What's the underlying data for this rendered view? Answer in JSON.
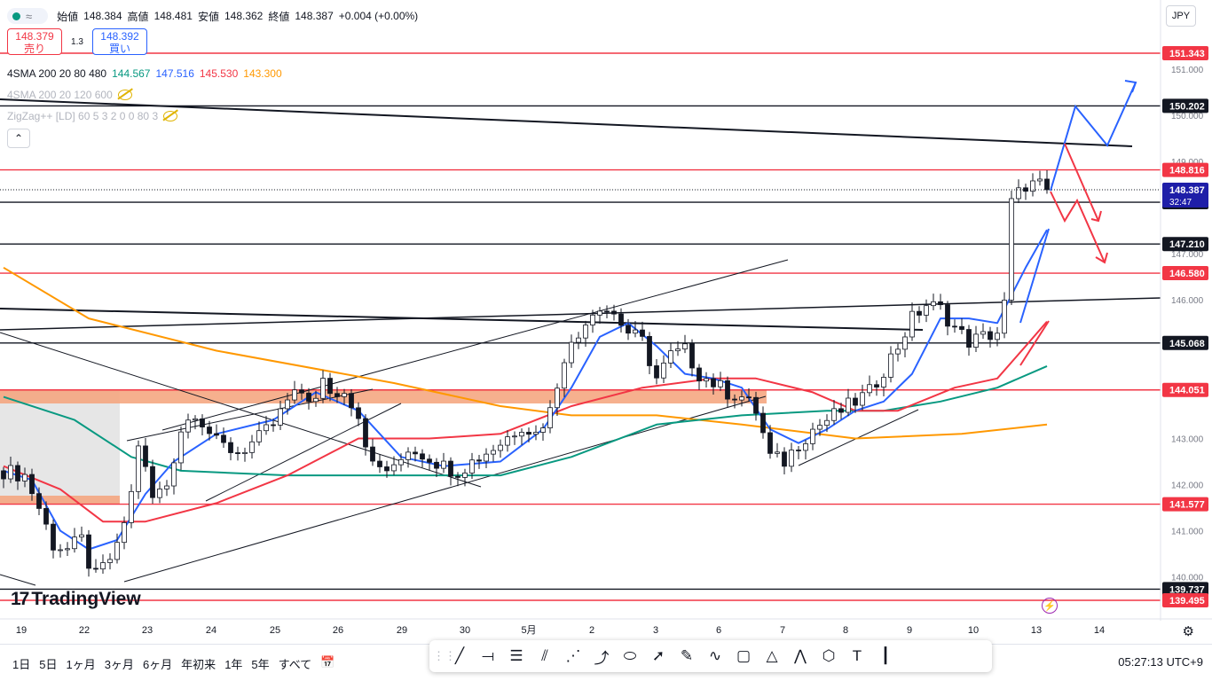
{
  "header": {
    "ohlc": {
      "open_label": "始値",
      "open": "148.384",
      "high_label": "高値",
      "high": "148.481",
      "low_label": "安値",
      "low": "148.362",
      "close_label": "終値",
      "close": "148.387",
      "change": "+0.004 (+0.00%)"
    },
    "sell": {
      "price": "148.379",
      "label": "売り"
    },
    "buy": {
      "price": "148.392",
      "label": "買い"
    },
    "spread": "1.3",
    "currency": "JPY",
    "icons": [
      "status-dot-icon",
      "wave-icon",
      "eye-off-icon",
      "chevron-up-icon"
    ]
  },
  "indicators": [
    {
      "label": "4SMA 200 20 80 480",
      "values": [
        "144.567",
        "147.516",
        "145.530",
        "143.300"
      ],
      "colors": [
        "#089981",
        "#2962ff",
        "#f23645",
        "#ff9800"
      ]
    },
    {
      "label": "4SMA 200 20 120 600",
      "hidden": true
    },
    {
      "label": "ZigZag++ [LD] 60 5 3 2 0 0 80 3",
      "hidden": true
    }
  ],
  "logo": "TradingView",
  "bottom": {
    "ranges": [
      "1日",
      "5日",
      "1ヶ月",
      "3ヶ月",
      "6ヶ月",
      "年初来",
      "1年",
      "5年",
      "すべて"
    ],
    "time": "05:27:13 UTC+9",
    "tools": [
      "trend-line-icon",
      "horizontal-ray-icon",
      "parallel-lines-icon",
      "fib-icon",
      "pitchfork-icon",
      "path-icon",
      "ellipse-icon",
      "arrow-icon",
      "brush-icon",
      "curve-icon",
      "rectangle-icon",
      "triangle-icon",
      "zigzag-icon",
      "polyline-icon",
      "text-icon",
      "vertical-line-icon"
    ]
  },
  "colors": {
    "up": "#089981",
    "down": "#131722",
    "red_line": "#f23645",
    "black_line": "#131722",
    "zone": "#f5a27a",
    "blue_arrow": "#2962ff",
    "red_arrow": "#f23645",
    "price_tag": "#1e1ea8"
  },
  "chart_data": {
    "type": "candlestick",
    "x_tick_labels": [
      "19",
      "22",
      "23",
      "24",
      "25",
      "26",
      "29",
      "30",
      "5月",
      "2",
      "3",
      "6",
      "7",
      "8",
      "9",
      "10",
      "13",
      "14"
    ],
    "y_tick_labels": [
      "151.000",
      "150.000",
      "149.000",
      "147.000",
      "146.000",
      "143.000",
      "142.000",
      "141.000",
      "140.000"
    ],
    "ylim": [
      139.3,
      151.6
    ],
    "last_price": {
      "value": "148.387",
      "countdown": "32:47"
    },
    "horizontal_levels": [
      {
        "value": 151.343,
        "label": "151.343",
        "color": "#f23645"
      },
      {
        "value": 150.202,
        "label": "150.202",
        "color": "#131722"
      },
      {
        "value": 148.816,
        "label": "148.816",
        "color": "#f23645"
      },
      {
        "value": 148.116,
        "label": "148.116",
        "color": "#131722"
      },
      {
        "value": 147.21,
        "label": "147.210",
        "color": "#131722"
      },
      {
        "value": 146.58,
        "label": "146.580",
        "color": "#f23645"
      },
      {
        "value": 145.068,
        "label": "145.068",
        "color": "#131722"
      },
      {
        "value": 144.051,
        "label": "144.051",
        "color": "#f23645"
      },
      {
        "value": 141.577,
        "label": "141.577",
        "color": "#f23645"
      },
      {
        "value": 139.737,
        "label": "139.737",
        "color": "#131722"
      },
      {
        "value": 139.495,
        "label": "139.495",
        "color": "#f23645"
      }
    ],
    "price_path": [
      [
        0,
        142.3
      ],
      [
        3,
        142.2
      ],
      [
        5,
        141.5
      ],
      [
        7,
        140.7
      ],
      [
        9,
        140.6
      ],
      [
        11,
        140.8
      ],
      [
        12,
        140.3
      ],
      [
        13,
        140.0
      ],
      [
        14,
        140.2
      ],
      [
        16,
        140.6
      ],
      [
        18,
        141.8
      ],
      [
        19,
        142.9
      ],
      [
        21,
        141.7
      ],
      [
        23,
        142.0
      ],
      [
        25,
        143.2
      ],
      [
        27,
        143.6
      ],
      [
        30,
        142.9
      ],
      [
        33,
        142.7
      ],
      [
        36,
        143.0
      ],
      [
        38,
        143.3
      ],
      [
        40,
        143.8
      ],
      [
        42,
        144.0
      ],
      [
        44,
        143.8
      ],
      [
        45,
        144.2
      ],
      [
        47,
        143.9
      ],
      [
        48,
        144.1
      ],
      [
        50,
        143.5
      ],
      [
        52,
        142.4
      ],
      [
        55,
        142.3
      ],
      [
        57,
        142.8
      ],
      [
        60,
        142.6
      ],
      [
        62,
        142.4
      ],
      [
        64,
        142.3
      ],
      [
        67,
        142.6
      ],
      [
        70,
        142.9
      ],
      [
        73,
        143.3
      ],
      [
        75,
        143.1
      ],
      [
        77,
        143.6
      ],
      [
        79,
        144.8
      ],
      [
        81,
        145.2
      ],
      [
        82,
        145.6
      ],
      [
        84,
        145.9
      ],
      [
        86,
        145.7
      ],
      [
        88,
        145.3
      ],
      [
        90,
        145.1
      ],
      [
        92,
        144.3
      ],
      [
        94,
        144.8
      ],
      [
        96,
        144.9
      ],
      [
        98,
        144.4
      ],
      [
        100,
        144.2
      ],
      [
        102,
        144.0
      ],
      [
        104,
        143.9
      ],
      [
        106,
        143.6
      ],
      [
        108,
        142.6
      ],
      [
        110,
        142.5
      ],
      [
        112,
        142.9
      ],
      [
        114,
        143.2
      ],
      [
        116,
        143.4
      ],
      [
        118,
        143.6
      ],
      [
        120,
        143.8
      ],
      [
        122,
        144.0
      ],
      [
        124,
        144.5
      ],
      [
        126,
        145.0
      ],
      [
        128,
        145.6
      ],
      [
        130,
        145.9
      ],
      [
        132,
        145.8
      ],
      [
        134,
        145.4
      ],
      [
        136,
        145.1
      ],
      [
        138,
        145.2
      ],
      [
        140,
        145.3
      ],
      [
        141,
        145.9
      ],
      [
        142,
        148.1
      ],
      [
        144,
        148.5
      ],
      [
        146,
        148.5
      ],
      [
        147,
        148.387
      ]
    ],
    "sma_lines": [
      {
        "name": "4SMA 200 20 80 480",
        "color": "#ff9800",
        "points": [
          [
            0,
            146.7
          ],
          [
            12,
            145.6
          ],
          [
            30,
            144.9
          ],
          [
            55,
            144.2
          ],
          [
            70,
            143.7
          ],
          [
            80,
            143.5
          ],
          [
            92,
            143.5
          ],
          [
            104,
            143.3
          ],
          [
            120,
            143.0
          ],
          [
            135,
            143.1
          ],
          [
            147,
            143.3
          ]
        ]
      },
      {
        "name": "4SMA 200 20 80 480",
        "color": "#089981",
        "points": [
          [
            0,
            143.9
          ],
          [
            10,
            143.4
          ],
          [
            18,
            142.6
          ],
          [
            25,
            142.3
          ],
          [
            40,
            142.2
          ],
          [
            55,
            142.2
          ],
          [
            70,
            142.2
          ],
          [
            80,
            142.6
          ],
          [
            92,
            143.3
          ],
          [
            104,
            143.5
          ],
          [
            116,
            143.6
          ],
          [
            124,
            143.6
          ],
          [
            132,
            143.8
          ],
          [
            140,
            144.1
          ],
          [
            147,
            144.567
          ]
        ]
      },
      {
        "name": "4SMA 200 20 80 480",
        "color": "#f23645",
        "points": [
          [
            0,
            142.4
          ],
          [
            8,
            141.9
          ],
          [
            14,
            141.2
          ],
          [
            20,
            141.2
          ],
          [
            30,
            141.6
          ],
          [
            40,
            142.2
          ],
          [
            50,
            143.0
          ],
          [
            60,
            143.0
          ],
          [
            70,
            143.1
          ],
          [
            80,
            143.7
          ],
          [
            90,
            144.1
          ],
          [
            100,
            144.3
          ],
          [
            106,
            144.3
          ],
          [
            114,
            144.0
          ],
          [
            120,
            143.6
          ],
          [
            126,
            143.6
          ],
          [
            134,
            144.1
          ],
          [
            140,
            144.3
          ],
          [
            144,
            145.0
          ],
          [
            147,
            145.53
          ]
        ]
      },
      {
        "name": "4SMA 200 20 80 480",
        "color": "#2962ff",
        "points": [
          [
            0,
            142.3
          ],
          [
            4,
            142.1
          ],
          [
            8,
            141.0
          ],
          [
            12,
            140.6
          ],
          [
            16,
            140.8
          ],
          [
            20,
            141.8
          ],
          [
            24,
            142.5
          ],
          [
            30,
            143.1
          ],
          [
            38,
            143.4
          ],
          [
            44,
            144.0
          ],
          [
            50,
            143.6
          ],
          [
            56,
            142.6
          ],
          [
            62,
            142.4
          ],
          [
            70,
            142.5
          ],
          [
            76,
            143.2
          ],
          [
            80,
            144.1
          ],
          [
            84,
            145.2
          ],
          [
            88,
            145.5
          ],
          [
            92,
            145.0
          ],
          [
            96,
            144.4
          ],
          [
            100,
            144.3
          ],
          [
            104,
            144.1
          ],
          [
            108,
            143.2
          ],
          [
            112,
            142.9
          ],
          [
            116,
            143.2
          ],
          [
            120,
            143.6
          ],
          [
            124,
            143.8
          ],
          [
            128,
            144.4
          ],
          [
            132,
            145.6
          ],
          [
            136,
            145.6
          ],
          [
            140,
            145.5
          ],
          [
            144,
            146.7
          ],
          [
            147,
            147.516
          ]
        ]
      }
    ]
  }
}
